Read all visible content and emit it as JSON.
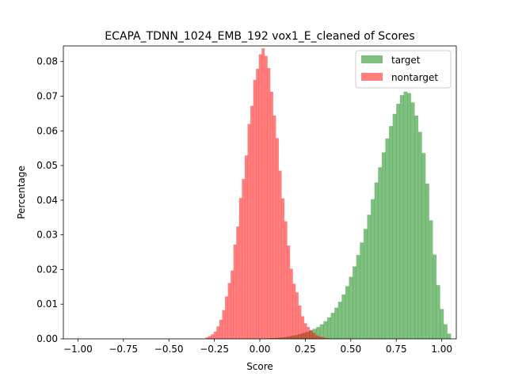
{
  "chart_data": {
    "type": "histogram",
    "title": "ECAPA_TDNN_1024_EMB_192 vox1_E_cleaned of Scores",
    "xlabel": "Score",
    "ylabel": "Percentage",
    "xlim": [
      -1.08,
      1.08
    ],
    "ylim": [
      0,
      0.0845
    ],
    "xticks": [
      -1.0,
      -0.75,
      -0.5,
      -0.25,
      0.0,
      0.25,
      0.5,
      0.75,
      1.0
    ],
    "xtick_labels": [
      "−1.00",
      "−0.75",
      "−0.50",
      "−0.25",
      "0.00",
      "0.25",
      "0.50",
      "0.75",
      "1.00"
    ],
    "yticks": [
      0.0,
      0.01,
      0.02,
      0.03,
      0.04,
      0.05,
      0.06,
      0.07,
      0.08
    ],
    "ytick_labels": [
      "0.00",
      "0.01",
      "0.02",
      "0.03",
      "0.04",
      "0.05",
      "0.06",
      "0.07",
      "0.08"
    ],
    "legend_position": "top-right",
    "series": [
      {
        "name": "target",
        "color": "#008000",
        "alpha": 0.5,
        "bin_start": 0.05,
        "bin_width": 0.02,
        "values": [
          0.0002,
          0.0002,
          0.0003,
          0.0004,
          0.0005,
          0.0007,
          0.0009,
          0.0011,
          0.0014,
          0.0017,
          0.002,
          0.0024,
          0.0029,
          0.0034,
          0.0042,
          0.0051,
          0.0062,
          0.0075,
          0.009,
          0.0107,
          0.0128,
          0.0152,
          0.0179,
          0.0209,
          0.0242,
          0.0278,
          0.0317,
          0.0358,
          0.0403,
          0.0451,
          0.0495,
          0.0538,
          0.0578,
          0.0614,
          0.0649,
          0.0678,
          0.0703,
          0.0713,
          0.0709,
          0.0682,
          0.0644,
          0.0597,
          0.0536,
          0.0448,
          0.0342,
          0.0243,
          0.0155,
          0.0086,
          0.0042,
          0.0015
        ]
      },
      {
        "name": "nontarget",
        "color": "#ff0000",
        "alpha": 0.5,
        "bin_start": -0.3,
        "bin_width": 0.0155,
        "values": [
          0.0004,
          0.0008,
          0.0013,
          0.0021,
          0.0036,
          0.0055,
          0.0083,
          0.0122,
          0.0161,
          0.0197,
          0.0272,
          0.0324,
          0.0406,
          0.0461,
          0.0529,
          0.062,
          0.0672,
          0.0747,
          0.0779,
          0.0821,
          0.0838,
          0.0816,
          0.0781,
          0.0713,
          0.0644,
          0.0579,
          0.0485,
          0.0405,
          0.0339,
          0.0269,
          0.0202,
          0.0159,
          0.0134,
          0.0096,
          0.0065,
          0.0045,
          0.0034,
          0.0025,
          0.0017,
          0.001,
          0.0007,
          0.0005,
          0.0003,
          0.0002,
          0.0001
        ]
      }
    ]
  }
}
